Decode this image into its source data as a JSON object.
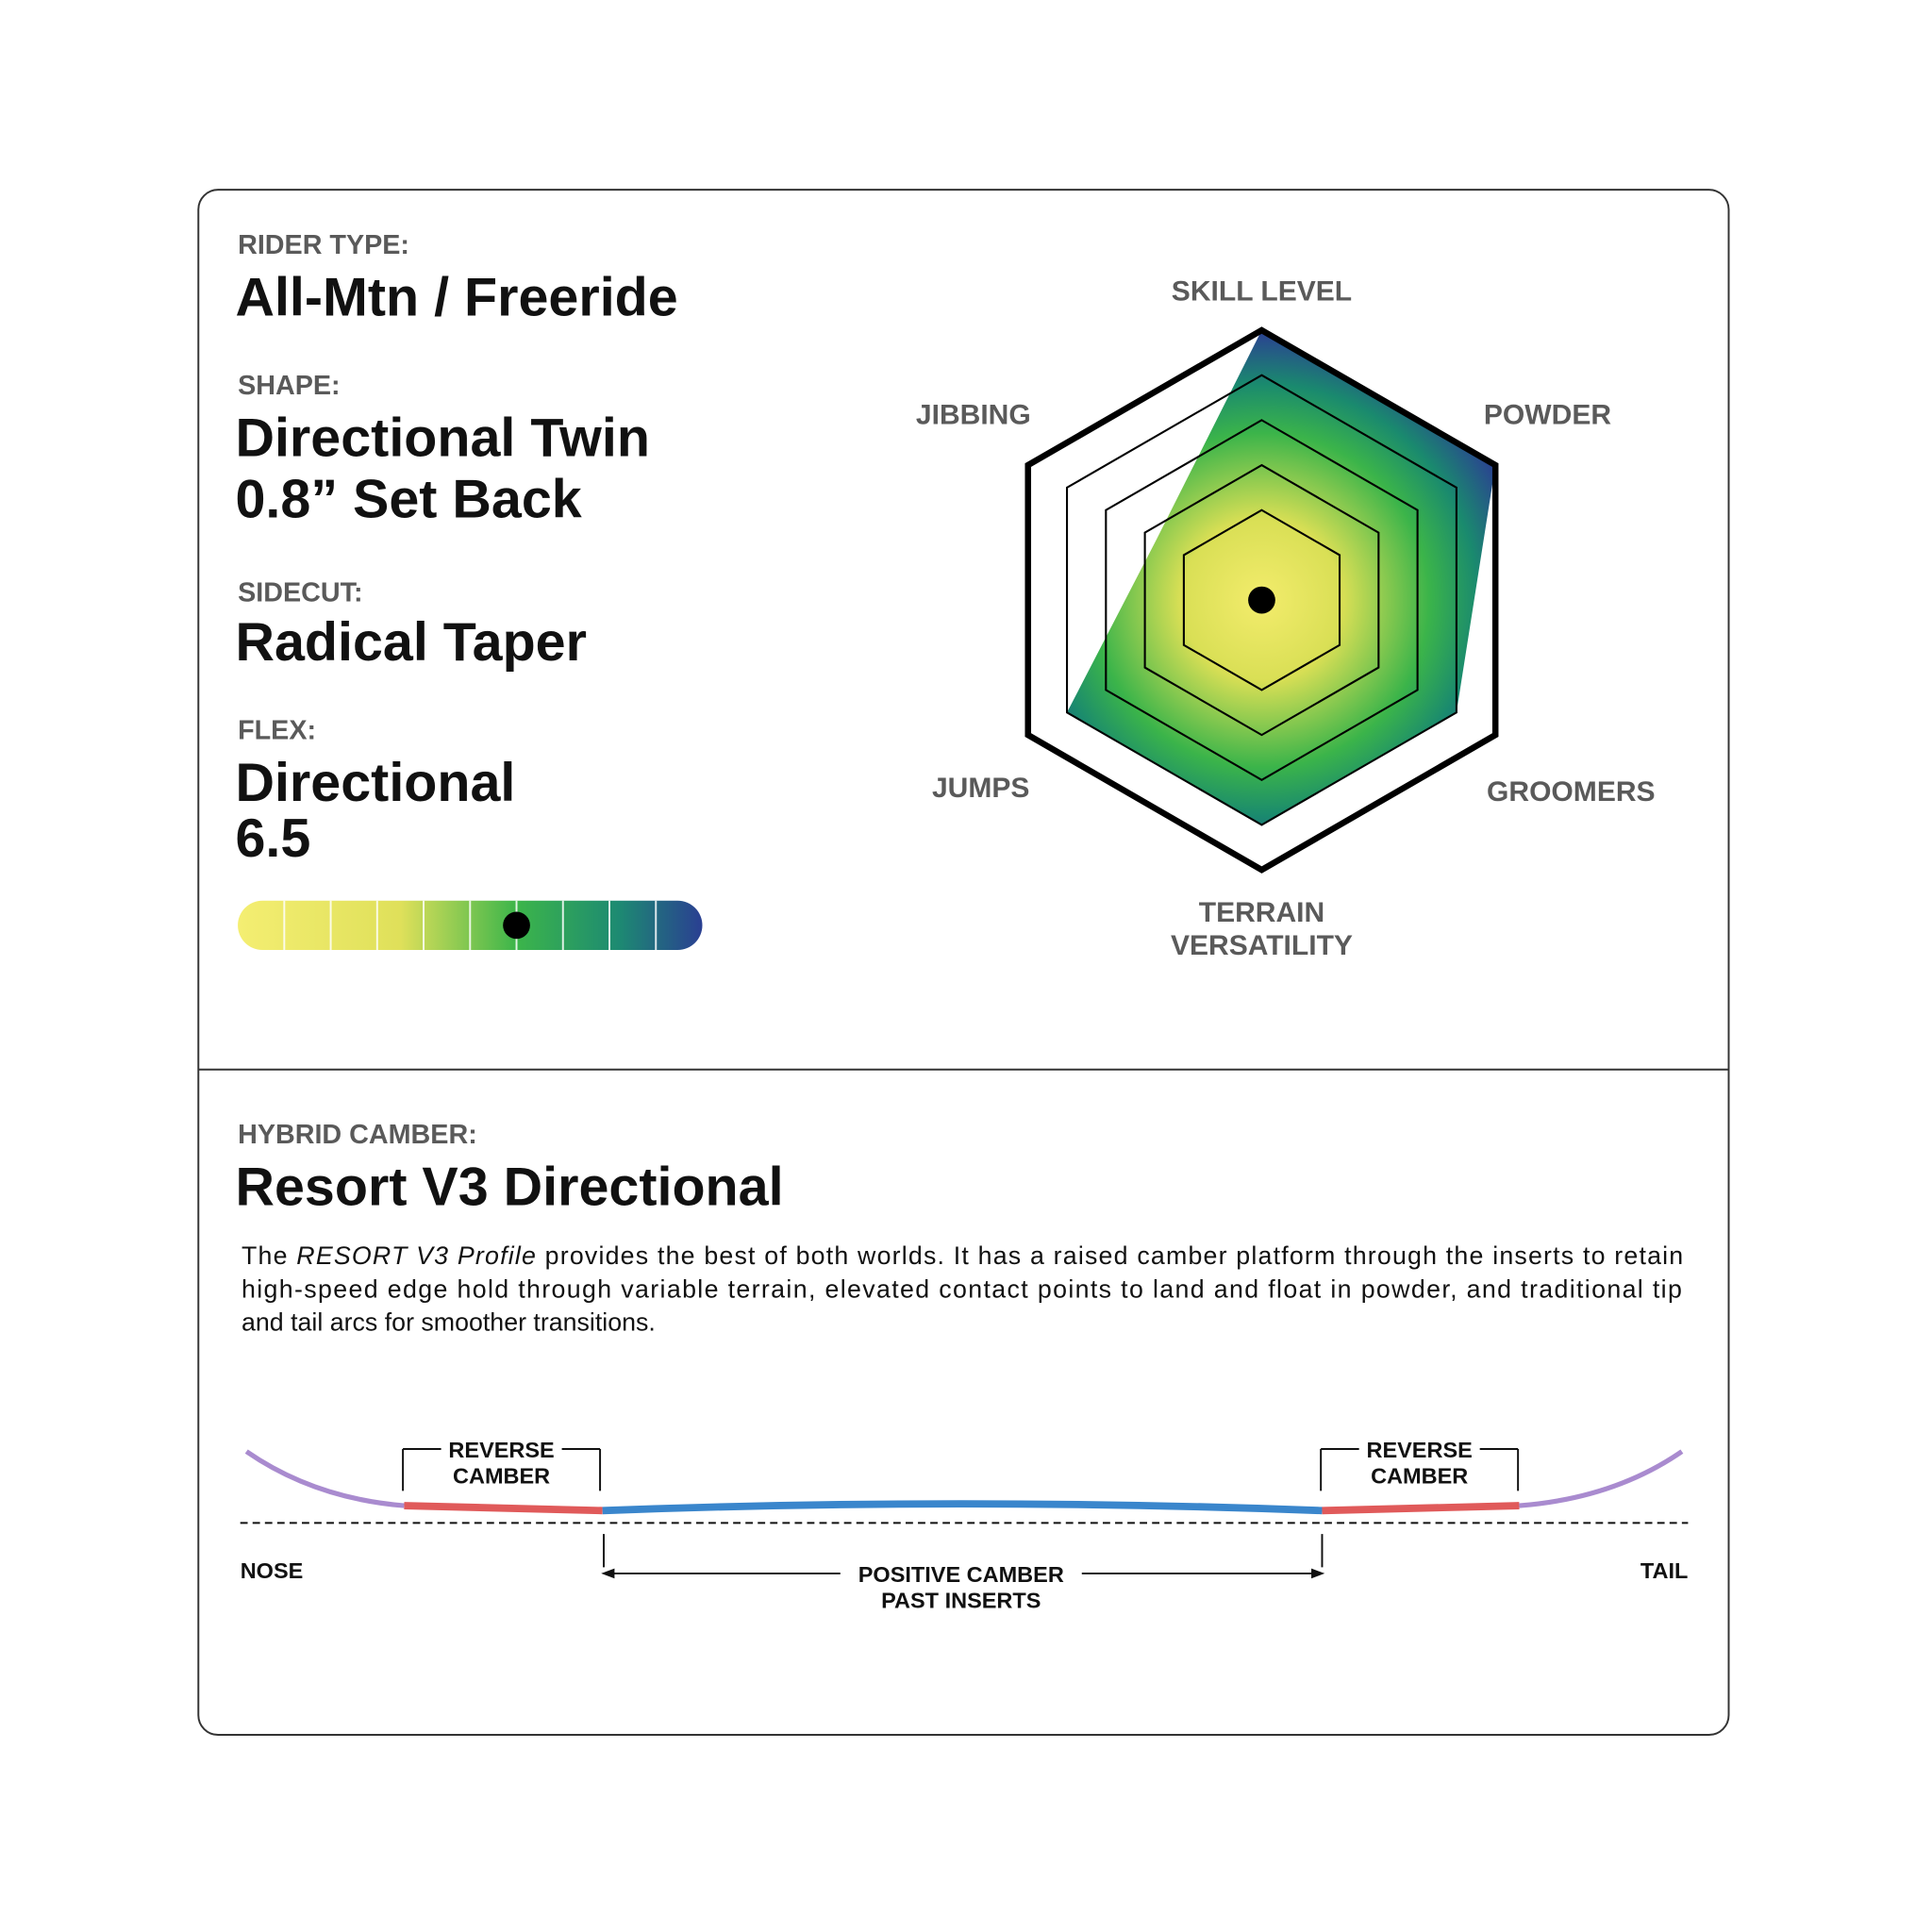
{
  "rider_type": {
    "label": "RIDER TYPE:",
    "value": "All-Mtn / Freeride"
  },
  "shape": {
    "label": "SHAPE:",
    "lines": [
      "Directional Twin",
      "0.8” Set Back"
    ]
  },
  "sidecut": {
    "label": "SIDECUT:",
    "value": "Radical Taper"
  },
  "flex": {
    "label": "FLEX:",
    "lines": [
      "Directional",
      6.5
    ],
    "scale_lim": [
      0.5,
      10.5
    ],
    "scale_ticks": [
      1.5,
      2.5,
      3.5,
      4.5,
      5.5,
      6.5,
      7.5,
      8.5,
      9.5
    ]
  },
  "chart_data": {
    "type": "radar",
    "categories": [
      "SKILL LEVEL",
      "POWDER",
      "GROOMERS",
      "TERRAIN VERSATILITY",
      "JUMPS",
      "JIBBING"
    ],
    "values": [
      6,
      6,
      5,
      5,
      5,
      2.7
    ],
    "rlim": [
      0,
      6
    ],
    "rticks": [
      2,
      3,
      4,
      5,
      6
    ],
    "colors": [
      "#f3ec6c",
      "#d9df55",
      "#3bb44a",
      "#1a8a6e",
      "#2b3f93"
    ]
  },
  "camber": {
    "label": "HYBRID CAMBER:",
    "value": "Resort V3 Directional",
    "description": {
      "line1_pre": "The ",
      "line1_em": "RESORT V3 Profile",
      "line1_post": " provides the best of both worlds. It has a raised camber platform through the inserts to retain",
      "line2": "high-speed edge hold through variable terrain, elevated contact points to land and float in powder, and traditional tip",
      "line3": "and tail arcs for smoother transitions."
    },
    "diagram": {
      "reverse_left": [
        "REVERSE",
        "CAMBER"
      ],
      "reverse_right": [
        "REVERSE",
        "CAMBER"
      ],
      "positive": [
        "POSITIVE CAMBER",
        "PAST INSERTS"
      ],
      "nose": "NOSE",
      "tail": "TAIL"
    }
  }
}
